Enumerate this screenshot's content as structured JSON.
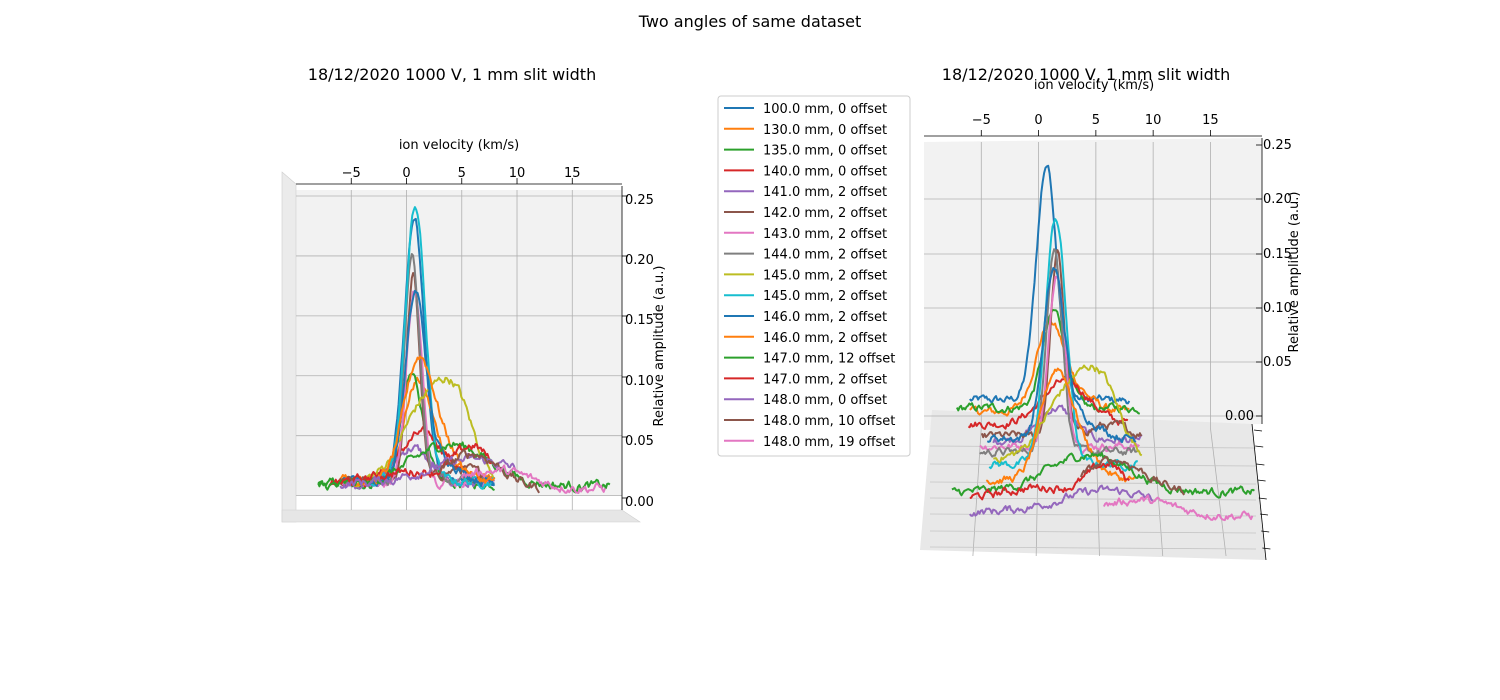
{
  "figure": {
    "suptitle": "Two angles of same dataset"
  },
  "chart_data": [
    {
      "type": "line",
      "view": "front (3d axes seen face-on)",
      "title": "18/12/2020 1000 V, 1 mm slit width",
      "xlabel": "ion velocity (km/s)",
      "zlabel": "Relative amplitude (a.u.)",
      "xlim": [
        -10,
        19
      ],
      "zlim": [
        -0.01,
        0.25
      ],
      "x_ticks": [
        "−5",
        "0",
        "5",
        "10",
        "15"
      ],
      "z_ticks": [
        "0.00",
        "0.05",
        "0.10",
        "0.15",
        "0.20",
        "0.25"
      ],
      "grid": true,
      "legend": "none"
    },
    {
      "type": "line",
      "view": "oblique (series stacked by distance in depth)",
      "title": "18/12/2020 1000 V, 1 mm slit width",
      "xlabel": "ion velocity (km/s)",
      "zlabel": "Relative amplitude (a.u.)",
      "xlim": [
        -10,
        19
      ],
      "zlim": [
        -0.01,
        0.25
      ],
      "x_ticks": [
        "−5",
        "0",
        "5",
        "10",
        "15"
      ],
      "z_ticks": [
        "0.00",
        "0.05",
        "0.10",
        "0.15",
        "0.20",
        "0.25"
      ],
      "grid": true,
      "legend": "left of axes"
    }
  ],
  "series": [
    {
      "name": "100.0 mm, 0 offset",
      "color": "#1f77b4",
      "x_range": [
        -6,
        8
      ],
      "peak_x": 0.7,
      "peak": 0.22,
      "width": 0.9,
      "shoulder": 0.0,
      "shoulder_x": 3,
      "baseline": 0.012
    },
    {
      "name": "130.0 mm, 0 offset",
      "color": "#ff7f0e",
      "x_range": [
        -6,
        8
      ],
      "peak_x": 0.9,
      "peak": 0.075,
      "width": 1.2,
      "shoulder": 0.02,
      "shoulder_x": 3,
      "baseline": 0.012
    },
    {
      "name": "135.0 mm, 0 offset",
      "color": "#2ca02c",
      "x_range": [
        -8,
        8
      ],
      "peak_x": 0.5,
      "peak": 0.09,
      "width": 1.0,
      "shoulder": 0.0,
      "shoulder_x": 3,
      "baseline": 0.01
    },
    {
      "name": "140.0 mm, 0 offset",
      "color": "#d62728",
      "x_range": [
        -7,
        7
      ],
      "peak_x": 1.5,
      "peak": 0.04,
      "width": 2.0,
      "shoulder": 0.0,
      "shoulder_x": 3,
      "baseline": 0.012
    },
    {
      "name": "141.0 mm, 2 offset",
      "color": "#9467bd",
      "x_range": [
        -5,
        8
      ],
      "peak_x": 0.5,
      "peak": 0.03,
      "width": 1.5,
      "shoulder": 0.0,
      "shoulder_x": 3,
      "baseline": 0.01
    },
    {
      "name": "142.0 mm, 2 offset",
      "color": "#8c564b",
      "x_range": [
        -6,
        8
      ],
      "peak_x": 0.6,
      "peak": 0.17,
      "width": 0.6,
      "shoulder": 0.01,
      "shoulder_x": 5,
      "baseline": 0.012
    },
    {
      "name": "143.0 mm, 2 offset",
      "color": "#e377c2",
      "x_range": [
        -6,
        8
      ],
      "peak_x": 0.7,
      "peak": 0.16,
      "width": 0.7,
      "shoulder": 0.0,
      "shoulder_x": 3,
      "baseline": 0.012
    },
    {
      "name": "144.0 mm, 2 offset",
      "color": "#7f7f7f",
      "x_range": [
        -6,
        8
      ],
      "peak_x": 0.5,
      "peak": 0.19,
      "width": 0.7,
      "shoulder": 0.0,
      "shoulder_x": 3,
      "baseline": 0.012
    },
    {
      "name": "145.0 mm, 2 offset",
      "color": "#bcbd22",
      "x_range": [
        -5,
        8
      ],
      "peak_x": 1.5,
      "peak": 0.06,
      "width": 2.0,
      "shoulder": 0.06,
      "shoulder_x": 4.5,
      "baseline": 0.012
    },
    {
      "name": "145.0 mm, 2 offset",
      "color": "#17becf",
      "x_range": [
        -5,
        8
      ],
      "peak_x": 0.8,
      "peak": 0.23,
      "width": 0.9,
      "shoulder": 0.0,
      "shoulder_x": 3,
      "baseline": 0.012
    },
    {
      "name": "146.0 mm, 2 offset",
      "color": "#1f77b4",
      "x_range": [
        -5,
        8
      ],
      "peak_x": 0.8,
      "peak": 0.15,
      "width": 0.9,
      "shoulder": 0.02,
      "shoulder_x": 3,
      "baseline": 0.012
    },
    {
      "name": "146.0 mm, 2 offset",
      "color": "#ff7f0e",
      "x_range": [
        -5,
        8
      ],
      "peak_x": 1.0,
      "peak": 0.09,
      "width": 1.3,
      "shoulder": 0.03,
      "shoulder_x": 3,
      "baseline": 0.012
    },
    {
      "name": "147.0 mm, 12 offset",
      "color": "#2ca02c",
      "x_range": [
        -8,
        18.5
      ],
      "peak_x": 4.0,
      "peak": 0.035,
      "width": 3.5,
      "shoulder": 0.0,
      "shoulder_x": 3,
      "baseline": 0.008
    },
    {
      "name": "147.0 mm, 2 offset",
      "color": "#d62728",
      "x_range": [
        -6,
        8
      ],
      "peak_x": 0.3,
      "peak": 0.01,
      "width": 3.0,
      "shoulder": 0.03,
      "shoulder_x": 6,
      "baseline": 0.01
    },
    {
      "name": "148.0 mm, 0 offset",
      "color": "#9467bd",
      "x_range": [
        -6,
        10
      ],
      "peak_x": 6.0,
      "peak": 0.02,
      "width": 4.0,
      "shoulder": 0.0,
      "shoulder_x": 3,
      "baseline": 0.01
    },
    {
      "name": "148.0 mm, 10 offset",
      "color": "#8c564b",
      "x_range": [
        3,
        12
      ],
      "peak_x": 6.0,
      "peak": 0.03,
      "width": 2.5,
      "shoulder": 0.0,
      "shoulder_x": 3,
      "baseline": 0.005
    },
    {
      "name": "148.0 mm, 19 offset",
      "color": "#e377c2",
      "x_range": [
        5,
        18
      ],
      "peak_x": 8.0,
      "peak": 0.015,
      "width": 3.0,
      "shoulder": 0.0,
      "shoulder_x": 3,
      "baseline": 0.006
    }
  ]
}
